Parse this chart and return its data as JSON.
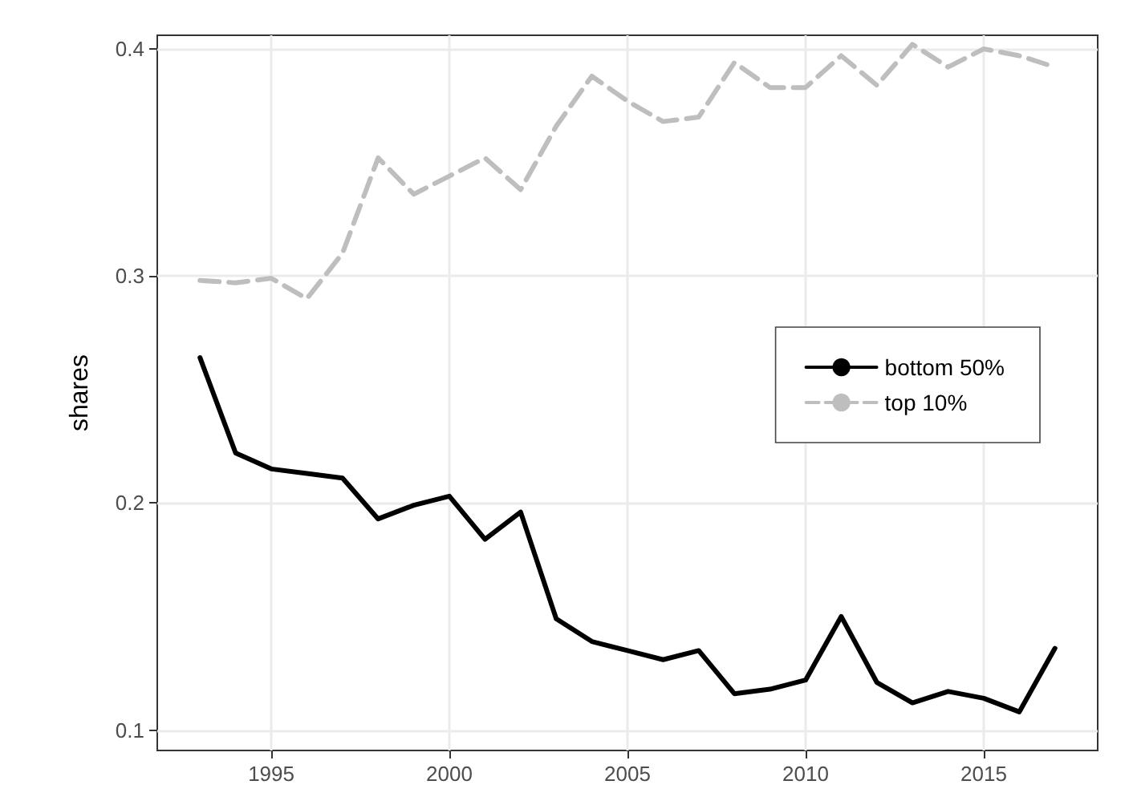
{
  "chart_data": {
    "type": "line",
    "ylabel": "shares",
    "x": [
      1993,
      1994,
      1995,
      1996,
      1997,
      1998,
      1999,
      2000,
      2001,
      2002,
      2003,
      2004,
      2005,
      2006,
      2007,
      2008,
      2009,
      2010,
      2011,
      2012,
      2013,
      2014,
      2015,
      2016,
      2017
    ],
    "series": [
      {
        "name": "bottom 50%",
        "color": "#000000",
        "line_style": "solid",
        "values": [
          0.264,
          0.222,
          0.215,
          0.213,
          0.211,
          0.193,
          0.199,
          0.203,
          0.184,
          0.196,
          0.149,
          0.139,
          0.135,
          0.131,
          0.135,
          0.116,
          0.118,
          0.122,
          0.15,
          0.121,
          0.112,
          0.117,
          0.114,
          0.108,
          0.136
        ]
      },
      {
        "name": "top 10%",
        "color": "#bebebe",
        "line_style": "dashed",
        "values": [
          0.298,
          0.297,
          0.299,
          0.29,
          0.31,
          0.352,
          0.336,
          0.344,
          0.352,
          0.338,
          0.366,
          0.388,
          0.377,
          0.368,
          0.37,
          0.394,
          0.383,
          0.383,
          0.397,
          0.384,
          0.402,
          0.392,
          0.4,
          0.397,
          0.392
        ]
      }
    ],
    "xlim": [
      1991.8,
      2018.2
    ],
    "xticks": [
      1995,
      2000,
      2005,
      2010,
      2015
    ],
    "ylim": [
      0.091,
      0.406
    ],
    "yticks": [
      0.1,
      0.2,
      0.3,
      0.4
    ],
    "grid": true,
    "legend": "right",
    "marker": "none"
  }
}
